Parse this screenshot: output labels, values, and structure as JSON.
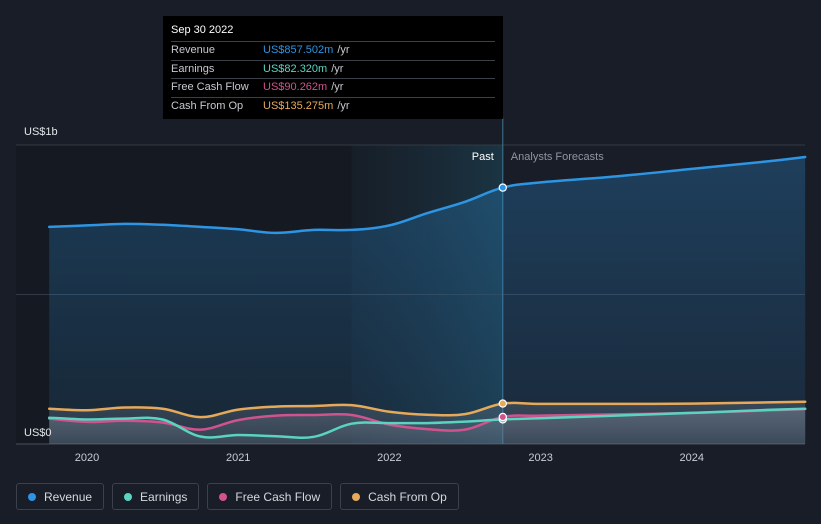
{
  "chart_data": {
    "type": "line",
    "y_axis_labels": {
      "top": "US$1b",
      "bottom": "US$0"
    },
    "ylim": [
      0,
      1000
    ],
    "x_ticks": [
      2020,
      2021,
      2022,
      2023,
      2024
    ],
    "past_label": "Past",
    "forecast_label": "Analysts Forecasts",
    "divider_x": 2022.75,
    "series": [
      {
        "name": "Revenue",
        "color": "#2d95e3",
        "points": [
          [
            2019.75,
            726
          ],
          [
            2020.0,
            731
          ],
          [
            2020.25,
            736
          ],
          [
            2020.5,
            733
          ],
          [
            2020.75,
            726
          ],
          [
            2021.0,
            718
          ],
          [
            2021.25,
            706
          ],
          [
            2021.5,
            716
          ],
          [
            2021.75,
            716
          ],
          [
            2022.0,
            731
          ],
          [
            2022.25,
            772
          ],
          [
            2022.5,
            810
          ],
          [
            2022.75,
            857.502
          ],
          [
            2023.0,
            875
          ],
          [
            2023.5,
            895
          ],
          [
            2024.0,
            920
          ],
          [
            2024.5,
            945
          ],
          [
            2024.75,
            960
          ]
        ]
      },
      {
        "name": "Earnings",
        "color": "#5ad4c1",
        "points": [
          [
            2019.75,
            88
          ],
          [
            2020.0,
            82
          ],
          [
            2020.25,
            85
          ],
          [
            2020.5,
            82
          ],
          [
            2020.75,
            25
          ],
          [
            2021.0,
            30
          ],
          [
            2021.25,
            26
          ],
          [
            2021.5,
            24
          ],
          [
            2021.75,
            68
          ],
          [
            2022.0,
            70
          ],
          [
            2022.25,
            70
          ],
          [
            2022.5,
            75
          ],
          [
            2022.75,
            82.32
          ],
          [
            2023.0,
            86
          ],
          [
            2023.5,
            95
          ],
          [
            2024.0,
            104
          ],
          [
            2024.5,
            114
          ],
          [
            2024.75,
            118
          ]
        ]
      },
      {
        "name": "Free Cash Flow",
        "color": "#d0538e",
        "points": [
          [
            2019.75,
            85
          ],
          [
            2020.0,
            74
          ],
          [
            2020.25,
            78
          ],
          [
            2020.5,
            72
          ],
          [
            2020.75,
            48
          ],
          [
            2021.0,
            80
          ],
          [
            2021.25,
            95
          ],
          [
            2021.5,
            97
          ],
          [
            2021.75,
            97
          ],
          [
            2022.0,
            65
          ],
          [
            2022.25,
            50
          ],
          [
            2022.5,
            48
          ],
          [
            2022.75,
            90.262
          ],
          [
            2023.0,
            95
          ],
          [
            2023.5,
            99
          ],
          [
            2024.0,
            104
          ],
          [
            2024.5,
            112
          ],
          [
            2024.75,
            117
          ]
        ]
      },
      {
        "name": "Cash From Op",
        "color": "#e6a95a",
        "points": [
          [
            2019.75,
            118
          ],
          [
            2020.0,
            113
          ],
          [
            2020.25,
            122
          ],
          [
            2020.5,
            118
          ],
          [
            2020.75,
            90
          ],
          [
            2021.0,
            115
          ],
          [
            2021.25,
            125
          ],
          [
            2021.5,
            127
          ],
          [
            2021.75,
            130
          ],
          [
            2022.0,
            108
          ],
          [
            2022.25,
            98
          ],
          [
            2022.5,
            100
          ],
          [
            2022.75,
            135.275
          ],
          [
            2023.0,
            134
          ],
          [
            2023.5,
            134
          ],
          [
            2024.0,
            135
          ],
          [
            2024.5,
            139
          ],
          [
            2024.75,
            141
          ]
        ]
      }
    ]
  },
  "tooltip": {
    "date": "Sep 30 2022",
    "rows": [
      {
        "label": "Revenue",
        "value": "US$857.502m",
        "unit": "/yr",
        "color": "#2d95e3"
      },
      {
        "label": "Earnings",
        "value": "US$82.320m",
        "unit": "/yr",
        "color": "#5ad4c1"
      },
      {
        "label": "Free Cash Flow",
        "value": "US$90.262m",
        "unit": "/yr",
        "color": "#d0538e"
      },
      {
        "label": "Cash From Op",
        "value": "US$135.275m",
        "unit": "/yr",
        "color": "#e6a95a"
      }
    ]
  },
  "legend": [
    {
      "label": "Revenue",
      "color": "#2d95e3"
    },
    {
      "label": "Earnings",
      "color": "#5ad4c1"
    },
    {
      "label": "Free Cash Flow",
      "color": "#d0538e"
    },
    {
      "label": "Cash From Op",
      "color": "#e6a95a"
    }
  ]
}
